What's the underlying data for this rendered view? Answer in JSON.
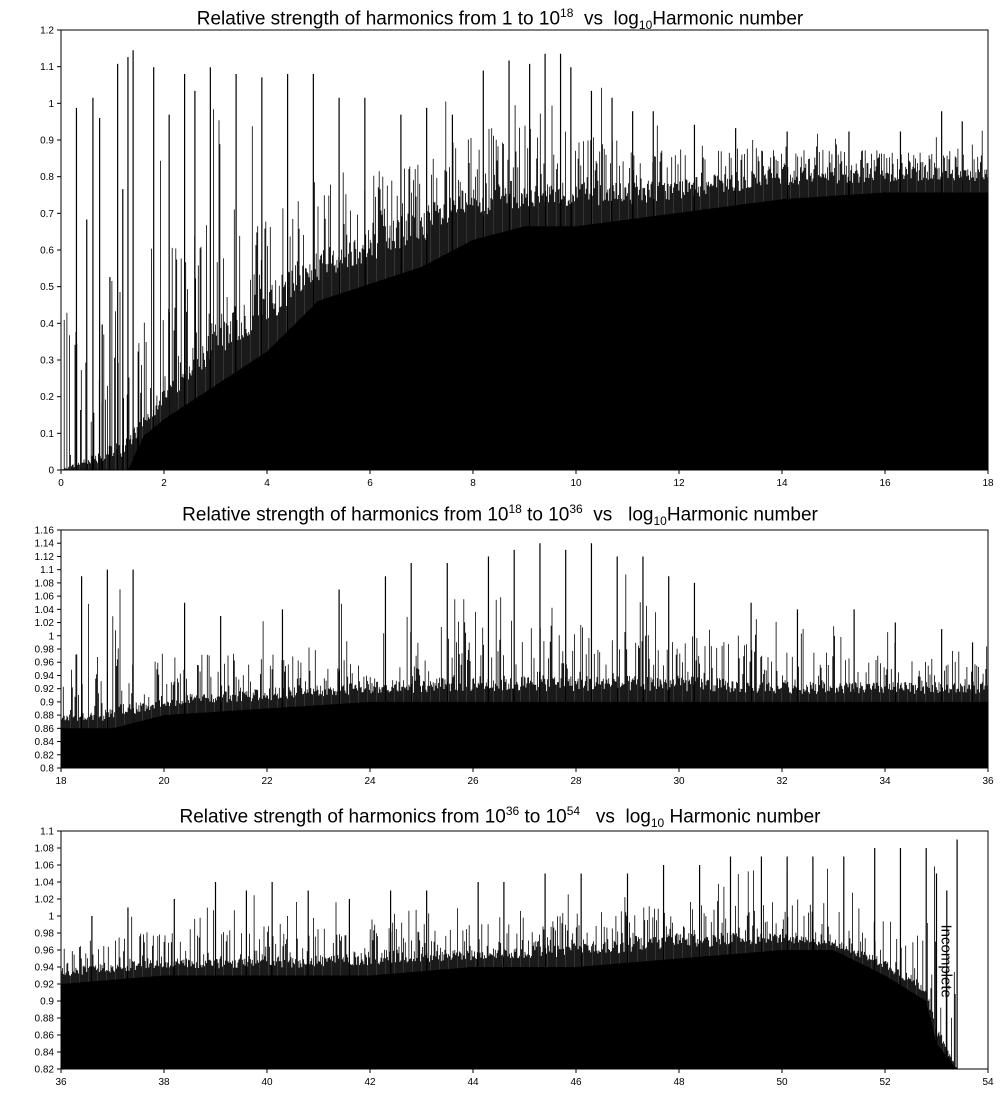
{
  "chart_data": [
    {
      "type": "bar",
      "title_parts": {
        "a": "Relative strength of harmonics from 1 to 10",
        "b": "18",
        "c": "  vs  log",
        "d": "10",
        "e": "Harmonic number"
      },
      "xlim": [
        0,
        18
      ],
      "ylim": [
        0,
        1.3
      ],
      "xticks": [
        "0",
        "2",
        "4",
        "6",
        "8",
        "10",
        "12",
        "14",
        "16",
        "18"
      ],
      "yticks": [
        "0",
        "0.1",
        "0.2",
        "0.3",
        "0.4",
        "0.5",
        "0.6",
        "0.7",
        "0.8",
        "0.9",
        "1",
        "1.1",
        "1.2"
      ],
      "grid": false,
      "envelope_floor": [
        [
          0,
          0
        ],
        [
          1.3,
          0
        ],
        [
          1.6,
          0.1
        ],
        [
          2,
          0.15
        ],
        [
          3,
          0.25
        ],
        [
          4,
          0.35
        ],
        [
          5,
          0.5
        ],
        [
          6,
          0.55
        ],
        [
          7,
          0.6
        ],
        [
          8,
          0.68
        ],
        [
          9,
          0.72
        ],
        [
          10,
          0.72
        ],
        [
          11,
          0.74
        ],
        [
          12,
          0.76
        ],
        [
          14,
          0.8
        ],
        [
          16,
          0.82
        ],
        [
          18,
          0.82
        ]
      ],
      "envelope_mid": [
        [
          0,
          0
        ],
        [
          1.3,
          0.1
        ],
        [
          2,
          0.25
        ],
        [
          3,
          0.45
        ],
        [
          4,
          0.55
        ],
        [
          5,
          0.65
        ],
        [
          6,
          0.72
        ],
        [
          7,
          0.78
        ],
        [
          8,
          0.84
        ],
        [
          9,
          0.86
        ],
        [
          10,
          0.85
        ],
        [
          11,
          0.85
        ],
        [
          12,
          0.86
        ],
        [
          14,
          0.9
        ],
        [
          16,
          0.9
        ],
        [
          18,
          0.9
        ]
      ],
      "envelope_peak": [
        [
          0.3,
          1.07
        ],
        [
          1.4,
          1.24
        ],
        [
          2,
          1.12
        ],
        [
          3,
          1.15
        ],
        [
          4,
          1.16
        ],
        [
          5,
          1.17
        ],
        [
          6,
          1.1
        ],
        [
          7,
          1.08
        ],
        [
          8,
          1.2
        ],
        [
          9,
          1.23
        ],
        [
          10,
          1.22
        ],
        [
          11,
          1.1
        ],
        [
          12,
          1.05
        ],
        [
          14,
          1.02
        ],
        [
          16,
          1.0
        ],
        [
          18,
          1.02
        ]
      ],
      "spikes": [
        [
          0.3,
          1.07
        ],
        [
          0.5,
          0.74
        ],
        [
          0.62,
          1.1
        ],
        [
          0.75,
          1.04
        ],
        [
          0.8,
          0.43
        ],
        [
          0.95,
          0.57
        ],
        [
          1.1,
          1.2
        ],
        [
          1.2,
          0.83
        ],
        [
          1.3,
          1.22
        ],
        [
          1.4,
          1.24
        ],
        [
          1.5,
          0.35
        ],
        [
          1.8,
          1.19
        ],
        [
          2.1,
          1.05
        ],
        [
          2.4,
          1.17
        ],
        [
          2.6,
          1.12
        ],
        [
          2.9,
          1.19
        ],
        [
          3.4,
          1.17
        ],
        [
          3.9,
          1.16
        ],
        [
          4.4,
          1.17
        ],
        [
          4.9,
          1.17
        ],
        [
          5.4,
          1.1
        ],
        [
          5.9,
          1.1
        ],
        [
          6.6,
          1.05
        ],
        [
          7.1,
          1.07
        ],
        [
          7.6,
          1.05
        ],
        [
          8.2,
          1.18
        ],
        [
          8.7,
          1.21
        ],
        [
          9.1,
          1.2
        ],
        [
          9.4,
          1.23
        ],
        [
          9.7,
          1.23
        ],
        [
          9.9,
          1.19
        ],
        [
          10.3,
          1.12
        ],
        [
          10.7,
          1.1
        ],
        [
          11.1,
          1.06
        ],
        [
          11.5,
          1.06
        ],
        [
          12.3,
          1.02
        ],
        [
          13.1,
          1.01
        ],
        [
          14.1,
          1.0
        ],
        [
          15.3,
          1.0
        ],
        [
          16.3,
          1.0
        ],
        [
          17.1,
          1.06
        ],
        [
          17.5,
          1.03
        ]
      ]
    },
    {
      "type": "bar",
      "title_parts": {
        "a": "Relative strength of harmonics from 10",
        "b": "18",
        "c": " to 10",
        "d": "36",
        "e": "  vs   log",
        "f": "10",
        "g": "Harmonic number"
      },
      "xlim": [
        18,
        36
      ],
      "ylim": [
        0.8,
        1.16
      ],
      "xticks": [
        "18",
        "20",
        "22",
        "24",
        "26",
        "28",
        "30",
        "32",
        "34",
        "36"
      ],
      "yticks": [
        "0.8",
        "0.82",
        "0.84",
        "0.86",
        "0.88",
        "0.9",
        "0.92",
        "0.94",
        "0.96",
        "0.98",
        "1",
        "1.02",
        "1.04",
        "1.06",
        "1.08",
        "1.1",
        "1.12",
        "1.14",
        "1.16"
      ],
      "grid": false,
      "envelope_floor": [
        [
          18,
          0.86
        ],
        [
          19,
          0.86
        ],
        [
          20,
          0.88
        ],
        [
          22,
          0.89
        ],
        [
          24,
          0.9
        ],
        [
          26,
          0.9
        ],
        [
          28,
          0.9
        ],
        [
          30,
          0.9
        ],
        [
          32,
          0.9
        ],
        [
          34,
          0.9
        ],
        [
          36,
          0.9
        ]
      ],
      "envelope_mid": [
        [
          18,
          0.88
        ],
        [
          19,
          0.89
        ],
        [
          20,
          0.91
        ],
        [
          22,
          0.92
        ],
        [
          24,
          0.93
        ],
        [
          26,
          0.94
        ],
        [
          28,
          0.94
        ],
        [
          30,
          0.94
        ],
        [
          32,
          0.93
        ],
        [
          34,
          0.93
        ],
        [
          36,
          0.93
        ]
      ],
      "envelope_peak": [
        [
          18,
          1.08
        ],
        [
          19,
          1.1
        ],
        [
          20,
          1.05
        ],
        [
          22,
          1.04
        ],
        [
          24,
          1.09
        ],
        [
          26,
          1.13
        ],
        [
          28,
          1.14
        ],
        [
          30,
          1.08
        ],
        [
          32,
          1.04
        ],
        [
          34,
          1.02
        ],
        [
          36,
          0.99
        ]
      ],
      "spikes": [
        [
          18.4,
          1.09
        ],
        [
          18.9,
          1.1
        ],
        [
          19.4,
          1.1
        ],
        [
          20.4,
          1.05
        ],
        [
          21.1,
          1.03
        ],
        [
          22.3,
          1.04
        ],
        [
          23.4,
          1.07
        ],
        [
          24.3,
          1.09
        ],
        [
          24.8,
          1.11
        ],
        [
          25.5,
          1.11
        ],
        [
          26.3,
          1.12
        ],
        [
          26.8,
          1.13
        ],
        [
          27.3,
          1.14
        ],
        [
          27.8,
          1.13
        ],
        [
          28.3,
          1.14
        ],
        [
          28.8,
          1.12
        ],
        [
          29.3,
          1.12
        ],
        [
          29.8,
          1.09
        ],
        [
          30.3,
          1.08
        ],
        [
          31.4,
          1.05
        ],
        [
          32.3,
          1.04
        ],
        [
          33.4,
          1.04
        ],
        [
          34.2,
          1.02
        ],
        [
          35.1,
          1.01
        ],
        [
          35.7,
          0.99
        ]
      ]
    },
    {
      "type": "bar",
      "title_parts": {
        "a": "Relative strength of harmonics from 10",
        "b": "36",
        "c": " to 10",
        "d": "54",
        "e": "   vs  log",
        "f": "10",
        "g": " Harmonic number"
      },
      "xlim": [
        36,
        54
      ],
      "ylim": [
        0.82,
        1.1
      ],
      "xticks": [
        "36",
        "38",
        "40",
        "42",
        "44",
        "46",
        "48",
        "50",
        "52",
        "54"
      ],
      "yticks": [
        "0.82",
        "0.84",
        "0.86",
        "0.88",
        "0.9",
        "0.92",
        "0.94",
        "0.96",
        "0.98",
        "1",
        "1.02",
        "1.04",
        "1.06",
        "1.08",
        "1.1"
      ],
      "grid": false,
      "envelope_floor": [
        [
          36,
          0.92
        ],
        [
          38,
          0.93
        ],
        [
          40,
          0.93
        ],
        [
          42,
          0.93
        ],
        [
          44,
          0.94
        ],
        [
          46,
          0.94
        ],
        [
          48,
          0.95
        ],
        [
          50,
          0.96
        ],
        [
          51,
          0.96
        ],
        [
          52,
          0.93
        ],
        [
          52.8,
          0.9
        ],
        [
          53.0,
          0.85
        ],
        [
          53.4,
          0.82
        ]
      ],
      "envelope_mid": [
        [
          36,
          0.94
        ],
        [
          38,
          0.95
        ],
        [
          40,
          0.95
        ],
        [
          42,
          0.96
        ],
        [
          44,
          0.96
        ],
        [
          46,
          0.97
        ],
        [
          48,
          0.98
        ],
        [
          50,
          0.98
        ],
        [
          51,
          0.97
        ],
        [
          52,
          0.95
        ],
        [
          52.8,
          0.92
        ],
        [
          53.0,
          0.87
        ],
        [
          53.4,
          0.82
        ]
      ],
      "envelope_peak": [
        [
          36,
          1.0
        ],
        [
          38,
          1.02
        ],
        [
          40,
          1.04
        ],
        [
          42,
          1.03
        ],
        [
          44,
          1.04
        ],
        [
          46,
          1.05
        ],
        [
          48,
          1.06
        ],
        [
          50,
          1.07
        ],
        [
          52,
          1.08
        ],
        [
          53.4,
          1.09
        ]
      ],
      "spikes": [
        [
          36.6,
          1.0
        ],
        [
          37.3,
          1.01
        ],
        [
          38.2,
          1.02
        ],
        [
          39.0,
          1.04
        ],
        [
          39.6,
          1.03
        ],
        [
          40.1,
          1.04
        ],
        [
          40.8,
          1.03
        ],
        [
          41.6,
          1.02
        ],
        [
          42.4,
          1.03
        ],
        [
          43.1,
          1.03
        ],
        [
          44.1,
          1.04
        ],
        [
          44.6,
          1.04
        ],
        [
          45.4,
          1.05
        ],
        [
          46.1,
          1.05
        ],
        [
          47.0,
          1.05
        ],
        [
          47.7,
          1.06
        ],
        [
          48.4,
          1.06
        ],
        [
          49.0,
          1.07
        ],
        [
          49.6,
          1.07
        ],
        [
          50.1,
          1.07
        ],
        [
          50.6,
          1.07
        ],
        [
          51.2,
          1.07
        ],
        [
          51.8,
          1.08
        ],
        [
          52.3,
          1.08
        ],
        [
          52.8,
          1.08
        ],
        [
          53.0,
          1.05
        ],
        [
          53.2,
          1.03
        ],
        [
          53.4,
          1.09
        ]
      ],
      "annotation": "Incomplete"
    }
  ]
}
